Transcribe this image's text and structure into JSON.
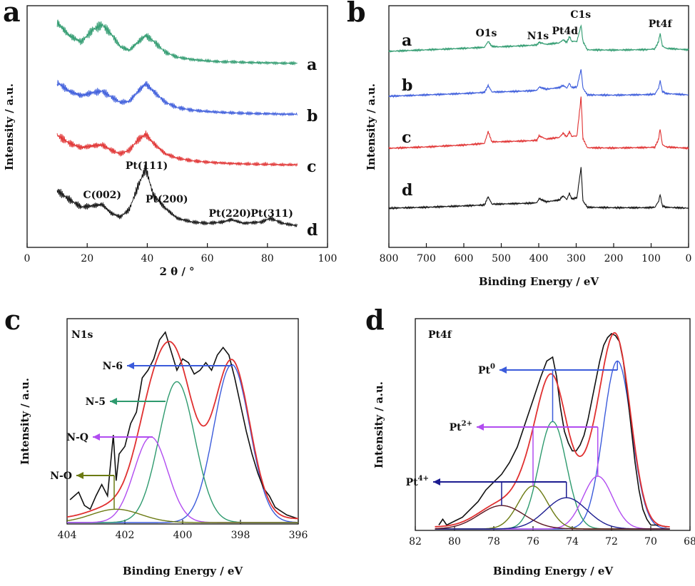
{
  "chart_data": [
    {
      "panel": "a",
      "type": "line",
      "xlabel": "2 θ / °",
      "ylabel": "Intensity / a.u.",
      "xlim": [
        0,
        100
      ],
      "xticks": [
        0,
        20,
        40,
        60,
        80,
        100
      ],
      "x": [
        10,
        14,
        18,
        22,
        25,
        28,
        31,
        34,
        37,
        39.5,
        42,
        46,
        50,
        55,
        60,
        65,
        68,
        72,
        78,
        81,
        85,
        90
      ],
      "series": [
        {
          "name": "a",
          "color": "#2e9a6e",
          "offset": 3.0,
          "values": [
            0.9,
            0.62,
            0.48,
            0.75,
            0.85,
            0.65,
            0.38,
            0.3,
            0.48,
            0.62,
            0.5,
            0.26,
            0.15,
            0.1,
            0.07,
            0.05,
            0.05,
            0.04,
            0.03,
            0.03,
            0.02,
            0.02
          ]
        },
        {
          "name": "b",
          "color": "#3b5bdb",
          "offset": 2.0,
          "values": [
            0.75,
            0.55,
            0.45,
            0.52,
            0.55,
            0.42,
            0.3,
            0.32,
            0.55,
            0.72,
            0.55,
            0.3,
            0.18,
            0.12,
            0.09,
            0.07,
            0.06,
            0.05,
            0.04,
            0.04,
            0.03,
            0.03
          ]
        },
        {
          "name": "c",
          "color": "#e03030",
          "offset": 1.0,
          "values": [
            0.7,
            0.52,
            0.42,
            0.46,
            0.48,
            0.36,
            0.28,
            0.36,
            0.6,
            0.72,
            0.52,
            0.28,
            0.18,
            0.12,
            0.09,
            0.07,
            0.06,
            0.05,
            0.04,
            0.04,
            0.03,
            0.03
          ]
        },
        {
          "name": "d",
          "color": "#111111",
          "offset": 0.0,
          "values": [
            0.62,
            0.48,
            0.36,
            0.38,
            0.4,
            0.26,
            0.2,
            0.32,
            0.7,
            0.98,
            0.55,
            0.34,
            0.18,
            0.12,
            0.1,
            0.12,
            0.16,
            0.1,
            0.12,
            0.18,
            0.1,
            0.06
          ]
        }
      ],
      "annotations": [
        {
          "text": "C(002)",
          "x": 25
        },
        {
          "text": "Pt(111)",
          "x": 39.8
        },
        {
          "text": "Pt(200)",
          "x": 46.5
        },
        {
          "text": "Pt(220)",
          "x": 67.5
        },
        {
          "text": "Pt(311)",
          "x": 81.5
        }
      ]
    },
    {
      "panel": "b",
      "type": "line",
      "xlabel": "Binding Energy / eV",
      "ylabel": "Intensity / a.u.",
      "xlim": [
        800,
        0
      ],
      "xticks": [
        800,
        700,
        600,
        500,
        400,
        300,
        200,
        100,
        0
      ],
      "x": [
        800,
        700,
        600,
        545,
        535,
        525,
        505,
        420,
        405,
        399,
        380,
        345,
        335,
        325,
        318,
        312,
        298,
        287,
        282,
        270,
        200,
        110,
        90,
        80,
        76,
        70,
        60,
        0
      ],
      "series": [
        {
          "name": "a",
          "color": "#2e9a6e",
          "offset": 3.0,
          "values": [
            0.0,
            0.06,
            0.12,
            0.16,
            0.4,
            0.2,
            0.18,
            0.24,
            0.26,
            0.36,
            0.28,
            0.34,
            0.46,
            0.36,
            0.6,
            0.4,
            0.4,
            1.05,
            0.4,
            0.06,
            0.05,
            0.07,
            0.1,
            0.4,
            0.72,
            0.22,
            0.12,
            0.06
          ]
        },
        {
          "name": "b",
          "color": "#3b5bdb",
          "offset": 2.0,
          "values": [
            0.0,
            0.05,
            0.1,
            0.14,
            0.4,
            0.16,
            0.16,
            0.2,
            0.22,
            0.34,
            0.26,
            0.32,
            0.4,
            0.3,
            0.48,
            0.32,
            0.34,
            1.0,
            0.3,
            0.05,
            0.04,
            0.06,
            0.08,
            0.3,
            0.58,
            0.18,
            0.1,
            0.05
          ]
        },
        {
          "name": "c",
          "color": "#e03030",
          "offset": 1.0,
          "values": [
            0.0,
            0.05,
            0.12,
            0.18,
            0.62,
            0.24,
            0.24,
            0.28,
            0.3,
            0.46,
            0.34,
            0.4,
            0.56,
            0.42,
            0.62,
            0.44,
            0.46,
            1.9,
            0.36,
            0.02,
            0.01,
            0.03,
            0.04,
            0.34,
            0.72,
            0.14,
            0.05,
            0.0
          ]
        },
        {
          "name": "d",
          "color": "#111111",
          "offset": 0.0,
          "values": [
            0.0,
            0.04,
            0.1,
            0.14,
            0.5,
            0.18,
            0.18,
            0.22,
            0.24,
            0.42,
            0.28,
            0.36,
            0.54,
            0.38,
            0.66,
            0.4,
            0.46,
            1.8,
            0.32,
            0.04,
            0.02,
            0.02,
            0.04,
            0.3,
            0.6,
            0.1,
            0.04,
            0.0
          ]
        }
      ],
      "annotations": [
        {
          "text": "O1s",
          "x": 540
        },
        {
          "text": "N1s",
          "x": 402
        },
        {
          "text": "Pt4d",
          "x": 330
        },
        {
          "text": "C1s",
          "x": 288
        },
        {
          "text": "Pt4f",
          "x": 76
        }
      ]
    },
    {
      "panel": "c",
      "type": "line",
      "title": "N1s",
      "xlabel": "Binding Energy / eV",
      "ylabel": "Intensity / a.u.",
      "xlim": [
        404,
        396
      ],
      "xticks": [
        404,
        402,
        400,
        398,
        396
      ],
      "raw": {
        "color": "#111111",
        "x": [
          403.9,
          403.6,
          403.4,
          403.2,
          403.0,
          402.8,
          402.6,
          402.4,
          402.3,
          402.2,
          402.0,
          401.8,
          401.6,
          401.4,
          401.2,
          401.0,
          400.8,
          400.6,
          400.4,
          400.2,
          400.0,
          399.8,
          399.6,
          399.4,
          399.2,
          399.0,
          398.8,
          398.6,
          398.4,
          398.2,
          398.0,
          397.8,
          397.6,
          397.4,
          397.2,
          397.0,
          396.8,
          396.6,
          396.4,
          396.2,
          396.0
        ],
        "y": [
          0.12,
          0.16,
          0.09,
          0.07,
          0.14,
          0.2,
          0.14,
          0.46,
          0.22,
          0.36,
          0.4,
          0.52,
          0.58,
          0.76,
          0.8,
          0.86,
          0.96,
          1.0,
          0.9,
          0.8,
          0.86,
          0.84,
          0.78,
          0.8,
          0.84,
          0.8,
          0.88,
          0.92,
          0.88,
          0.76,
          0.62,
          0.48,
          0.36,
          0.26,
          0.18,
          0.14,
          0.08,
          0.06,
          0.04,
          0.03,
          0.02
        ]
      },
      "envelope": {
        "color": "#e03030"
      },
      "components": [
        {
          "name": "N-6",
          "color": "#3b5bdb",
          "center": 398.3,
          "height": 0.83,
          "width": 0.62
        },
        {
          "name": "N-5",
          "color": "#2e9a6e",
          "center": 400.2,
          "height": 0.74,
          "width": 0.62
        },
        {
          "name": "N-Q",
          "color": "#b14cf0",
          "center": 401.1,
          "height": 0.45,
          "width": 0.58
        },
        {
          "name": "N-O",
          "color": "#6b7a12",
          "center": 402.3,
          "height": 0.07,
          "width": 0.85
        }
      ]
    },
    {
      "panel": "d",
      "type": "line",
      "title": "Pt4f",
      "xlabel": "Binding Energy / eV",
      "ylabel": "Intensity / a.u.",
      "xlim": [
        82,
        68
      ],
      "xticks": [
        82,
        80,
        78,
        76,
        74,
        72,
        70,
        68
      ],
      "raw": {
        "color": "#111111",
        "x": [
          80.8,
          80.6,
          80.4,
          80.0,
          79.6,
          79.2,
          78.8,
          78.4,
          78.0,
          77.6,
          77.2,
          76.8,
          76.4,
          76.0,
          75.6,
          75.3,
          75.0,
          74.8,
          74.6,
          74.4,
          74.2,
          74.0,
          73.8,
          73.6,
          73.4,
          73.2,
          73.0,
          72.8,
          72.6,
          72.4,
          72.2,
          72.0,
          71.8,
          71.6,
          71.4,
          71.2,
          71.0,
          70.8,
          70.6,
          70.4,
          70.2,
          70.0,
          69.6,
          69.2
        ],
        "y": [
          0.02,
          0.05,
          0.02,
          0.04,
          0.06,
          0.1,
          0.14,
          0.2,
          0.24,
          0.28,
          0.34,
          0.42,
          0.54,
          0.66,
          0.78,
          0.86,
          0.88,
          0.78,
          0.62,
          0.5,
          0.44,
          0.4,
          0.4,
          0.43,
          0.48,
          0.56,
          0.66,
          0.76,
          0.86,
          0.94,
          0.98,
          1.0,
          0.99,
          0.96,
          0.86,
          0.7,
          0.52,
          0.34,
          0.2,
          0.1,
          0.05,
          0.02,
          0.02,
          0.01
        ]
      },
      "envelope": {
        "color": "#e03030"
      },
      "components": [
        {
          "name": "Pt0",
          "color": "#3b5bdb",
          "center": 71.7,
          "height": 0.86,
          "width": 0.72
        },
        {
          "name": "Pt0",
          "color": "#2e9a6e",
          "center": 75.0,
          "height": 0.55,
          "width": 0.7
        },
        {
          "name": "Pt2+",
          "color": "#b14cf0",
          "center": 72.7,
          "height": 0.27,
          "width": 0.75
        },
        {
          "name": "Pt2+",
          "color": "#6b7a12",
          "center": 76.0,
          "height": 0.22,
          "width": 0.75
        },
        {
          "name": "Pt4+",
          "color": "#1c1c90",
          "center": 74.3,
          "height": 0.16,
          "width": 1.05
        },
        {
          "name": "Pt4+",
          "color": "#5a1420",
          "center": 77.6,
          "height": 0.12,
          "width": 1.15
        }
      ],
      "labels": {
        "pt0": {
          "base": "Pt",
          "sup": "0"
        },
        "pt2": {
          "base": "Pt",
          "sup": "2+"
        },
        "pt4": {
          "base": "Pt",
          "sup": "4+"
        }
      }
    }
  ]
}
